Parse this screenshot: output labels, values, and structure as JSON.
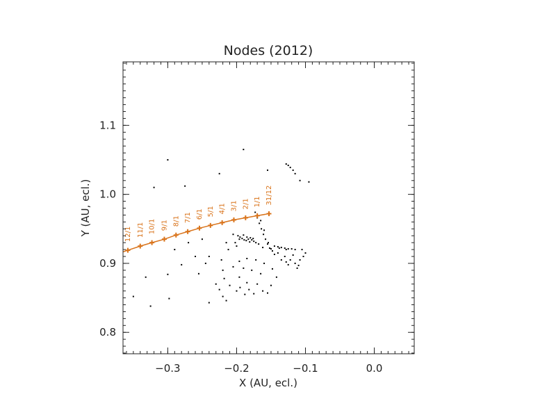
{
  "chart_data": {
    "type": "scatter",
    "title": "Nodes (2012)",
    "xlabel": "X (AU, ecl.)",
    "ylabel": "Y (AU, ecl.)",
    "xlim": [
      -0.365,
      0.058
    ],
    "ylim": [
      0.769,
      1.192
    ],
    "xticks": [
      -0.3,
      -0.2,
      -0.1,
      0.0
    ],
    "xtick_labels": [
      "−0.3",
      "−0.2",
      "−0.1",
      "0.0"
    ],
    "yticks": [
      0.8,
      0.9,
      1.0,
      1.1
    ],
    "ytick_labels": [
      "0.8",
      "0.9",
      "1.0",
      "1.1"
    ],
    "grid": false,
    "colors": {
      "earth_orbit": "#d9731a",
      "nodes": "#000000",
      "axes": "#222222"
    },
    "series": [
      {
        "name": "",
        "kind": "line+markers",
        "color": "#d9731a",
        "labels": [
          "12/1",
          "11/1",
          "10/1",
          "9/1",
          "8/1",
          "7/1",
          "6/1",
          "5/1",
          "4/1",
          "3/1",
          "2/1",
          "1/1",
          "31/12"
        ],
        "points": [
          [
            -0.358,
            0.919
          ],
          [
            -0.34,
            0.925
          ],
          [
            -0.323,
            0.93
          ],
          [
            -0.305,
            0.935
          ],
          [
            -0.288,
            0.941
          ],
          [
            -0.271,
            0.946
          ],
          [
            -0.254,
            0.951
          ],
          [
            -0.238,
            0.955
          ],
          [
            -0.221,
            0.959
          ],
          [
            -0.204,
            0.963
          ],
          [
            -0.187,
            0.966
          ],
          [
            -0.17,
            0.969
          ],
          [
            -0.153,
            0.972
          ]
        ]
      },
      {
        "name": "",
        "kind": "scatter",
        "color": "#000000",
        "points": [
          [
            -0.173,
            0.974
          ],
          [
            -0.17,
            0.966
          ],
          [
            -0.167,
            0.958
          ],
          [
            -0.164,
            0.95
          ],
          [
            -0.161,
            0.942
          ],
          [
            -0.158,
            0.935
          ],
          [
            -0.155,
            0.928
          ],
          [
            -0.152,
            0.922
          ],
          [
            -0.148,
            0.918
          ],
          [
            -0.165,
            0.962
          ],
          [
            -0.16,
            0.948
          ],
          [
            -0.154,
            0.93
          ],
          [
            -0.15,
            0.921
          ],
          [
            -0.145,
            0.925
          ],
          [
            -0.14,
            0.924
          ],
          [
            -0.135,
            0.923
          ],
          [
            -0.13,
            0.922
          ],
          [
            -0.125,
            0.921
          ],
          [
            -0.12,
            0.921
          ],
          [
            -0.115,
            0.92
          ],
          [
            -0.138,
            0.922
          ],
          [
            -0.128,
            0.92
          ],
          [
            -0.198,
            0.94
          ],
          [
            -0.195,
            0.938
          ],
          [
            -0.192,
            0.936
          ],
          [
            -0.189,
            0.934
          ],
          [
            -0.186,
            0.933
          ],
          [
            -0.183,
            0.935
          ],
          [
            -0.18,
            0.937
          ],
          [
            -0.178,
            0.934
          ],
          [
            -0.175,
            0.932
          ],
          [
            -0.172,
            0.93
          ],
          [
            -0.196,
            0.935
          ],
          [
            -0.19,
            0.941
          ],
          [
            -0.185,
            0.938
          ],
          [
            -0.181,
            0.931
          ],
          [
            -0.176,
            0.936
          ],
          [
            -0.205,
            0.942
          ],
          [
            -0.202,
            0.93
          ],
          [
            -0.2,
            0.925
          ],
          [
            -0.168,
            0.928
          ],
          [
            -0.162,
            0.923
          ],
          [
            -0.14,
            0.915
          ],
          [
            -0.13,
            0.91
          ],
          [
            -0.122,
            0.905
          ],
          [
            -0.115,
            0.9
          ],
          [
            -0.108,
            0.905
          ],
          [
            -0.103,
            0.91
          ],
          [
            -0.112,
            0.893
          ],
          [
            -0.125,
            0.898
          ],
          [
            -0.135,
            0.905
          ],
          [
            -0.145,
            0.913
          ],
          [
            -0.1,
            0.915
          ],
          [
            -0.105,
            0.92
          ],
          [
            -0.118,
            0.912
          ],
          [
            -0.128,
            0.902
          ],
          [
            -0.11,
            0.897
          ],
          [
            -0.215,
            0.93
          ],
          [
            -0.212,
            0.92
          ],
          [
            -0.222,
            0.905
          ],
          [
            -0.22,
            0.89
          ],
          [
            -0.218,
            0.878
          ],
          [
            -0.21,
            0.868
          ],
          [
            -0.2,
            0.86
          ],
          [
            -0.188,
            0.855
          ],
          [
            -0.175,
            0.856
          ],
          [
            -0.162,
            0.86
          ],
          [
            -0.15,
            0.868
          ],
          [
            -0.142,
            0.88
          ],
          [
            -0.148,
            0.892
          ],
          [
            -0.16,
            0.9
          ],
          [
            -0.172,
            0.905
          ],
          [
            -0.185,
            0.907
          ],
          [
            -0.196,
            0.903
          ],
          [
            -0.205,
            0.895
          ],
          [
            -0.196,
            0.88
          ],
          [
            -0.185,
            0.872
          ],
          [
            -0.17,
            0.87
          ],
          [
            -0.165,
            0.885
          ],
          [
            -0.178,
            0.89
          ],
          [
            -0.19,
            0.893
          ],
          [
            -0.23,
            0.87
          ],
          [
            -0.225,
            0.862
          ],
          [
            -0.22,
            0.852
          ],
          [
            -0.215,
            0.846
          ],
          [
            -0.24,
            0.843
          ],
          [
            -0.195,
            0.865
          ],
          [
            -0.182,
            0.862
          ],
          [
            -0.155,
            0.857
          ],
          [
            -0.27,
            0.93
          ],
          [
            -0.25,
            0.935
          ],
          [
            -0.26,
            0.91
          ],
          [
            -0.28,
            0.898
          ],
          [
            -0.3,
            0.884
          ],
          [
            -0.29,
            0.92
          ],
          [
            -0.24,
            0.91
          ],
          [
            -0.245,
            0.9
          ],
          [
            -0.255,
            0.885
          ],
          [
            -0.325,
            0.838
          ],
          [
            -0.298,
            0.849
          ],
          [
            -0.35,
            0.852
          ],
          [
            -0.332,
            0.88
          ],
          [
            -0.19,
            1.065
          ],
          [
            -0.3,
            1.05
          ],
          [
            -0.225,
            1.03
          ],
          [
            -0.275,
            1.012
          ],
          [
            -0.32,
            1.01
          ],
          [
            -0.125,
            1.042
          ],
          [
            -0.122,
            1.039
          ],
          [
            -0.118,
            1.035
          ],
          [
            -0.115,
            1.03
          ],
          [
            -0.128,
            1.044
          ],
          [
            -0.095,
            1.018
          ],
          [
            -0.108,
            1.02
          ],
          [
            -0.155,
            1.035
          ]
        ]
      }
    ]
  }
}
